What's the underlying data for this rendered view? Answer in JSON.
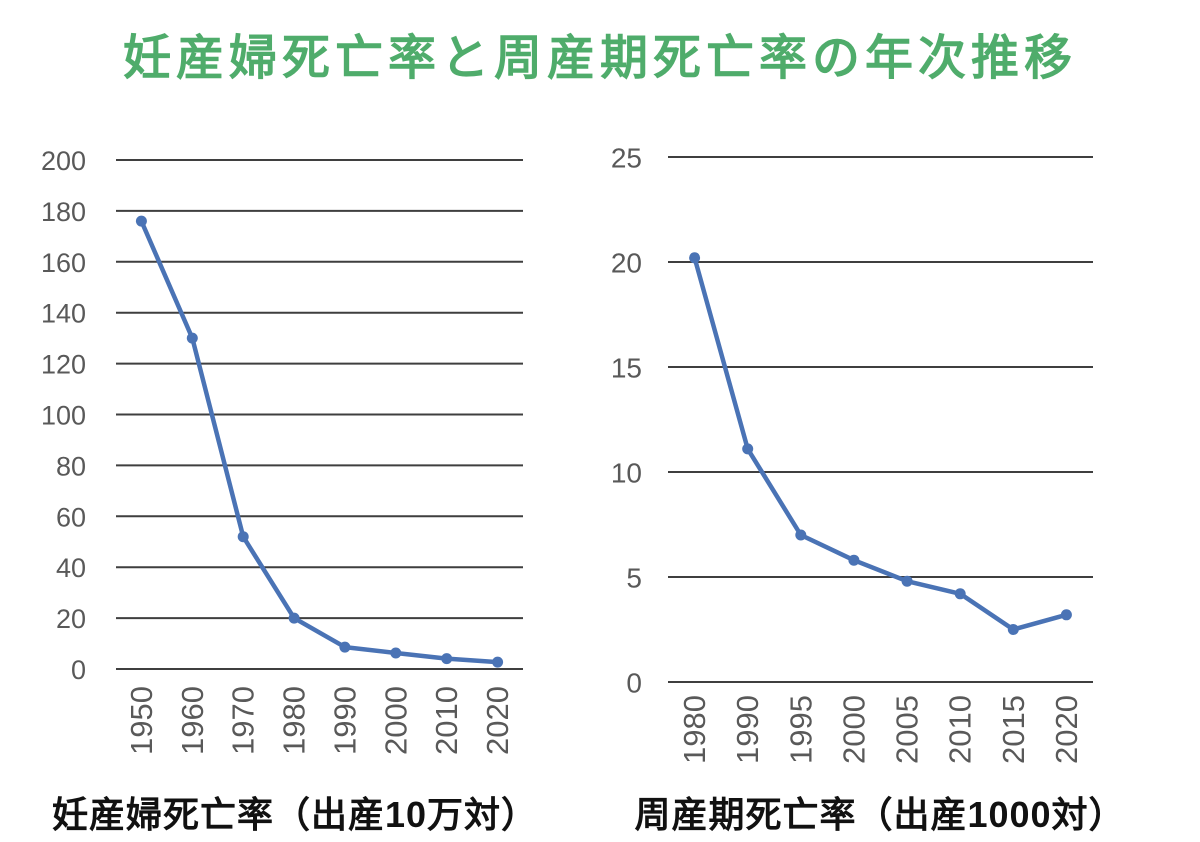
{
  "page": {
    "title": "妊産婦死亡率と周産期死亡率の年次推移",
    "title_color": "#4FAC6B",
    "background_color": "#ffffff"
  },
  "chart_data": [
    {
      "type": "line",
      "name": "maternal-mortality-trend",
      "caption": "妊産婦死亡率（出産10万対）",
      "categories": [
        "1950",
        "1960",
        "1970",
        "1980",
        "1990",
        "2000",
        "2010",
        "2020"
      ],
      "values": [
        176,
        130,
        52,
        20,
        8.6,
        6.3,
        4.1,
        2.7
      ],
      "title": "",
      "xlabel": "",
      "ylabel": "",
      "ylim": [
        0,
        200
      ],
      "ytick_step": 20,
      "yticks": [
        0,
        20,
        40,
        60,
        80,
        100,
        120,
        140,
        160,
        180,
        200
      ],
      "grid": true,
      "legend": "none",
      "marker": "circle",
      "line_color": "#4A73B5",
      "gridline_color": "#3F3F3F",
      "tick_label_color": "#595959"
    },
    {
      "type": "line",
      "name": "perinatal-mortality-trend",
      "caption": "周産期死亡率（出産1000対）",
      "categories": [
        "1980",
        "1990",
        "1995",
        "2000",
        "2005",
        "2010",
        "2015",
        "2020"
      ],
      "values": [
        20.2,
        11.1,
        7.0,
        5.8,
        4.8,
        4.2,
        2.5,
        3.2
      ],
      "title": "",
      "xlabel": "",
      "ylabel": "",
      "ylim": [
        0,
        25
      ],
      "ytick_step": 5,
      "yticks": [
        0,
        5,
        10,
        15,
        20,
        25
      ],
      "grid": true,
      "legend": "none",
      "marker": "circle",
      "line_color": "#4A73B5",
      "gridline_color": "#3F3F3F",
      "tick_label_color": "#595959"
    }
  ]
}
